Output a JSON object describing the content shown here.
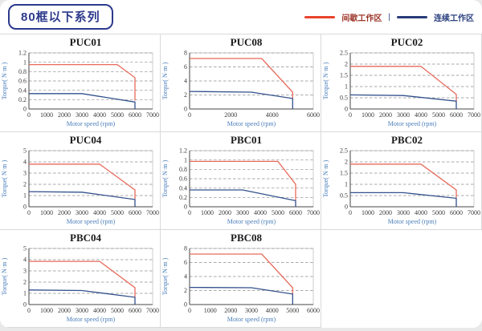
{
  "header": {
    "title": "80框以下系列",
    "legend": {
      "intermittent_label": "间歇工作区",
      "separator": "|",
      "continuous_label": "连续工作区",
      "intermittent_color": "#e8432d",
      "continuous_color": "#283c78"
    }
  },
  "chart_data": [
    {
      "type": "line",
      "title": "PUC01",
      "xlabel": "Motor speed (rpm)",
      "ylabel": "Torque( N·m )",
      "xlim": [
        0,
        7000
      ],
      "ylim": [
        0,
        1.2
      ],
      "xticks": [
        0,
        1000,
        2000,
        3000,
        4000,
        5000,
        6000,
        7000
      ],
      "yticks": [
        0,
        0.2,
        0.4,
        0.6,
        0.8,
        1,
        1.2
      ],
      "grid": "horizontal-dashed",
      "series": [
        {
          "name": "间歇工作区",
          "color": "#e76a5a",
          "points": [
            [
              0,
              0.95
            ],
            [
              5000,
              0.95
            ],
            [
              6000,
              0.67
            ],
            [
              6000,
              0.18
            ]
          ]
        },
        {
          "name": "连续工作区",
          "color": "#32508c",
          "points": [
            [
              0,
              0.33
            ],
            [
              3000,
              0.33
            ],
            [
              6000,
              0.15
            ],
            [
              6000,
              0
            ]
          ]
        }
      ]
    },
    {
      "type": "line",
      "title": "PUC08",
      "xlabel": "Motor speed (rpm)",
      "ylabel": "Torque( N·m )",
      "xlim": [
        0,
        6000
      ],
      "ylim": [
        0,
        8
      ],
      "xticks": [
        0,
        2000,
        4000,
        6000
      ],
      "yticks": [
        0,
        2,
        4,
        6,
        8
      ],
      "grid": "horizontal-dashed",
      "series": [
        {
          "name": "间歇工作区",
          "color": "#e76a5a",
          "points": [
            [
              0,
              7.2
            ],
            [
              3500,
              7.2
            ],
            [
              5000,
              2.4
            ],
            [
              5000,
              1.5
            ]
          ]
        },
        {
          "name": "连续工作区",
          "color": "#32508c",
          "points": [
            [
              0,
              2.5
            ],
            [
              3000,
              2.4
            ],
            [
              5000,
              1.5
            ],
            [
              5000,
              0
            ]
          ]
        }
      ]
    },
    {
      "type": "line",
      "title": "PUC02",
      "xlabel": "Motor speed (rpm)",
      "ylabel": "Torque( N·m )",
      "xlim": [
        0,
        7000
      ],
      "ylim": [
        0,
        2.5
      ],
      "xticks": [
        0,
        1000,
        2000,
        3000,
        4000,
        5000,
        6000,
        7000
      ],
      "yticks": [
        0,
        0.5,
        1,
        1.5,
        2,
        2.5
      ],
      "grid": "horizontal-dashed",
      "series": [
        {
          "name": "间歇工作区",
          "color": "#e76a5a",
          "points": [
            [
              0,
              1.9
            ],
            [
              4000,
              1.9
            ],
            [
              6000,
              0.65
            ],
            [
              6000,
              0.35
            ]
          ]
        },
        {
          "name": "连续工作区",
          "color": "#32508c",
          "points": [
            [
              0,
              0.63
            ],
            [
              3000,
              0.6
            ],
            [
              6000,
              0.35
            ],
            [
              6000,
              0
            ]
          ]
        }
      ]
    },
    {
      "type": "line",
      "title": "PUC04",
      "xlabel": "Motor speed (rpm)",
      "ylabel": "Torque( N·m )",
      "xlim": [
        0,
        7000
      ],
      "ylim": [
        0,
        5
      ],
      "xticks": [
        0,
        1000,
        2000,
        3000,
        4000,
        5000,
        6000,
        7000
      ],
      "yticks": [
        0,
        1,
        2,
        3,
        4,
        5
      ],
      "grid": "horizontal-dashed",
      "series": [
        {
          "name": "间歇工作区",
          "color": "#e76a5a",
          "points": [
            [
              0,
              3.8
            ],
            [
              4000,
              3.8
            ],
            [
              6000,
              1.5
            ],
            [
              6000,
              0.7
            ]
          ]
        },
        {
          "name": "连续工作区",
          "color": "#32508c",
          "points": [
            [
              0,
              1.35
            ],
            [
              3000,
              1.3
            ],
            [
              6000,
              0.65
            ],
            [
              6000,
              0
            ]
          ]
        }
      ]
    },
    {
      "type": "line",
      "title": "PBC01",
      "xlabel": "Motor speed (rpm)",
      "ylabel": "Torque( N·m )",
      "xlim": [
        0,
        7000
      ],
      "ylim": [
        0,
        1.2
      ],
      "xticks": [
        0,
        1000,
        2000,
        3000,
        4000,
        5000,
        6000,
        7000
      ],
      "yticks": [
        0,
        0.2,
        0.4,
        0.6,
        0.8,
        1,
        1.2
      ],
      "grid": "horizontal-dashed",
      "series": [
        {
          "name": "间歇工作区",
          "color": "#e76a5a",
          "points": [
            [
              0,
              0.97
            ],
            [
              5000,
              0.97
            ],
            [
              6000,
              0.48
            ],
            [
              6000,
              0.13
            ]
          ]
        },
        {
          "name": "连续工作区",
          "color": "#32508c",
          "points": [
            [
              0,
              0.36
            ],
            [
              3000,
              0.36
            ],
            [
              6000,
              0.13
            ],
            [
              6000,
              0
            ]
          ]
        }
      ]
    },
    {
      "type": "line",
      "title": "PBC02",
      "xlabel": "Motor speed (rpm)",
      "ylabel": "Torque( N·m )",
      "xlim": [
        0,
        7000
      ],
      "ylim": [
        0,
        2.5
      ],
      "xticks": [
        0,
        1000,
        2000,
        3000,
        4000,
        5000,
        6000,
        7000
      ],
      "yticks": [
        0,
        0.5,
        1,
        1.5,
        2,
        2.5
      ],
      "grid": "horizontal-dashed",
      "series": [
        {
          "name": "间歇工作区",
          "color": "#e76a5a",
          "points": [
            [
              0,
              1.9
            ],
            [
              4000,
              1.9
            ],
            [
              6000,
              0.75
            ],
            [
              6000,
              0.4
            ]
          ]
        },
        {
          "name": "连续工作区",
          "color": "#32508c",
          "points": [
            [
              0,
              0.63
            ],
            [
              3000,
              0.63
            ],
            [
              6000,
              0.38
            ],
            [
              6000,
              0
            ]
          ]
        }
      ]
    },
    {
      "type": "line",
      "title": "PBC04",
      "xlabel": "Motor speed (rpm)",
      "ylabel": "Torque( N·m )",
      "xlim": [
        0,
        7000
      ],
      "ylim": [
        0,
        5
      ],
      "xticks": [
        0,
        1000,
        2000,
        3000,
        4000,
        5000,
        6000,
        7000
      ],
      "yticks": [
        0,
        1,
        2,
        3,
        4,
        5
      ],
      "grid": "horizontal-dashed",
      "series": [
        {
          "name": "间歇工作区",
          "color": "#e76a5a",
          "points": [
            [
              0,
              3.85
            ],
            [
              4000,
              3.85
            ],
            [
              6000,
              1.5
            ],
            [
              6000,
              0.65
            ]
          ]
        },
        {
          "name": "连续工作区",
          "color": "#32508c",
          "points": [
            [
              0,
              1.3
            ],
            [
              3000,
              1.25
            ],
            [
              6000,
              0.65
            ],
            [
              6000,
              0
            ]
          ]
        }
      ]
    },
    {
      "type": "line",
      "title": "PBC08",
      "xlabel": "Motor speed (rpm)",
      "ylabel": "Torque( N·m )",
      "xlim": [
        0,
        6000
      ],
      "ylim": [
        0,
        8
      ],
      "xticks": [
        0,
        1000,
        2000,
        3000,
        4000,
        5000,
        6000
      ],
      "yticks": [
        0,
        2,
        4,
        6,
        8
      ],
      "grid": "horizontal-dashed",
      "series": [
        {
          "name": "间歇工作区",
          "color": "#e76a5a",
          "points": [
            [
              0,
              7.2
            ],
            [
              3500,
              7.2
            ],
            [
              5000,
              2.4
            ],
            [
              5000,
              1.5
            ]
          ]
        },
        {
          "name": "连续工作区",
          "color": "#32508c",
          "points": [
            [
              0,
              2.45
            ],
            [
              3000,
              2.4
            ],
            [
              5000,
              1.5
            ],
            [
              5000,
              0
            ]
          ]
        }
      ]
    }
  ]
}
